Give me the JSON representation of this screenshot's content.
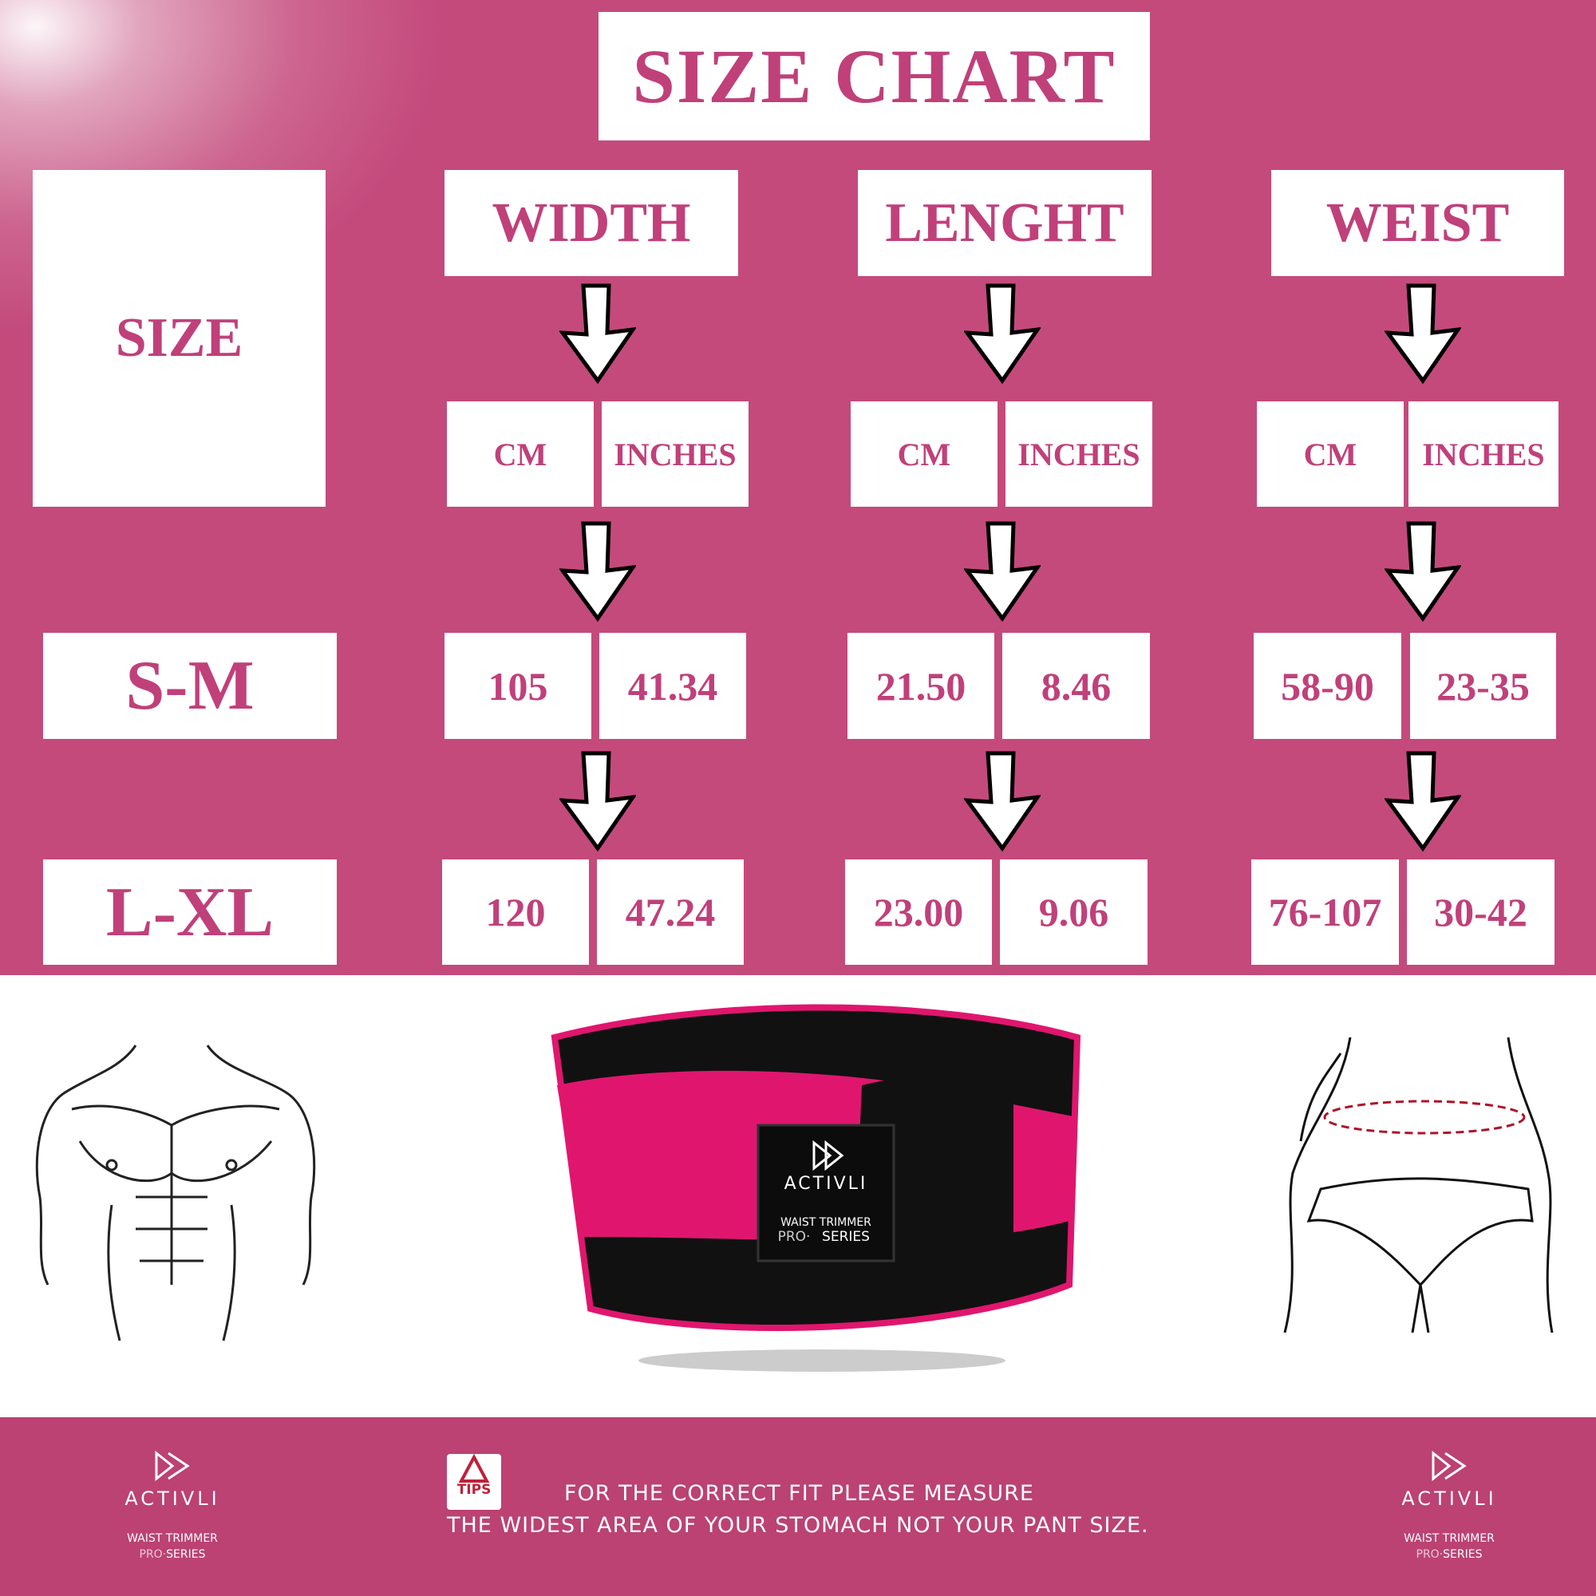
{
  "title": "SIZE CHART",
  "headers": {
    "size": "SIZE",
    "width": "WIDTH",
    "length": "LENGHT",
    "waist": "WEIST"
  },
  "units": {
    "cm": "CM",
    "inches": "INCHES"
  },
  "rows": [
    {
      "size": "S-M",
      "width_cm": "105",
      "width_in": "41.34",
      "length_cm": "21.50",
      "length_in": "8.46",
      "waist_cm": "58-90",
      "waist_in": "23-35"
    },
    {
      "size": "L-XL",
      "width_cm": "120",
      "width_in": "47.24",
      "length_cm": "23.00",
      "length_in": "9.06",
      "waist_cm": "76-107",
      "waist_in": "30-42"
    }
  ],
  "product_label": {
    "brand": "ACTIVLI",
    "line1": "WAIST TRIMMER",
    "pro": "PRO·",
    "series": "SERIES"
  },
  "footer": {
    "brand": "ACTIVLI",
    "line1": "WAIST TRIMMER",
    "pro": "PRO·",
    "series": "SERIES",
    "tips_label": "TIPS",
    "message_line1": "FOR THE CORRECT FIT PLEASE MEASURE",
    "message_line2": "THE WIDEST AREA OF YOUR STOMACH NOT YOUR PANT SIZE."
  },
  "colors": {
    "background": "#c44a7c",
    "footer": "#bb4272",
    "text": "#c0407a",
    "belt": "#e0166e"
  }
}
